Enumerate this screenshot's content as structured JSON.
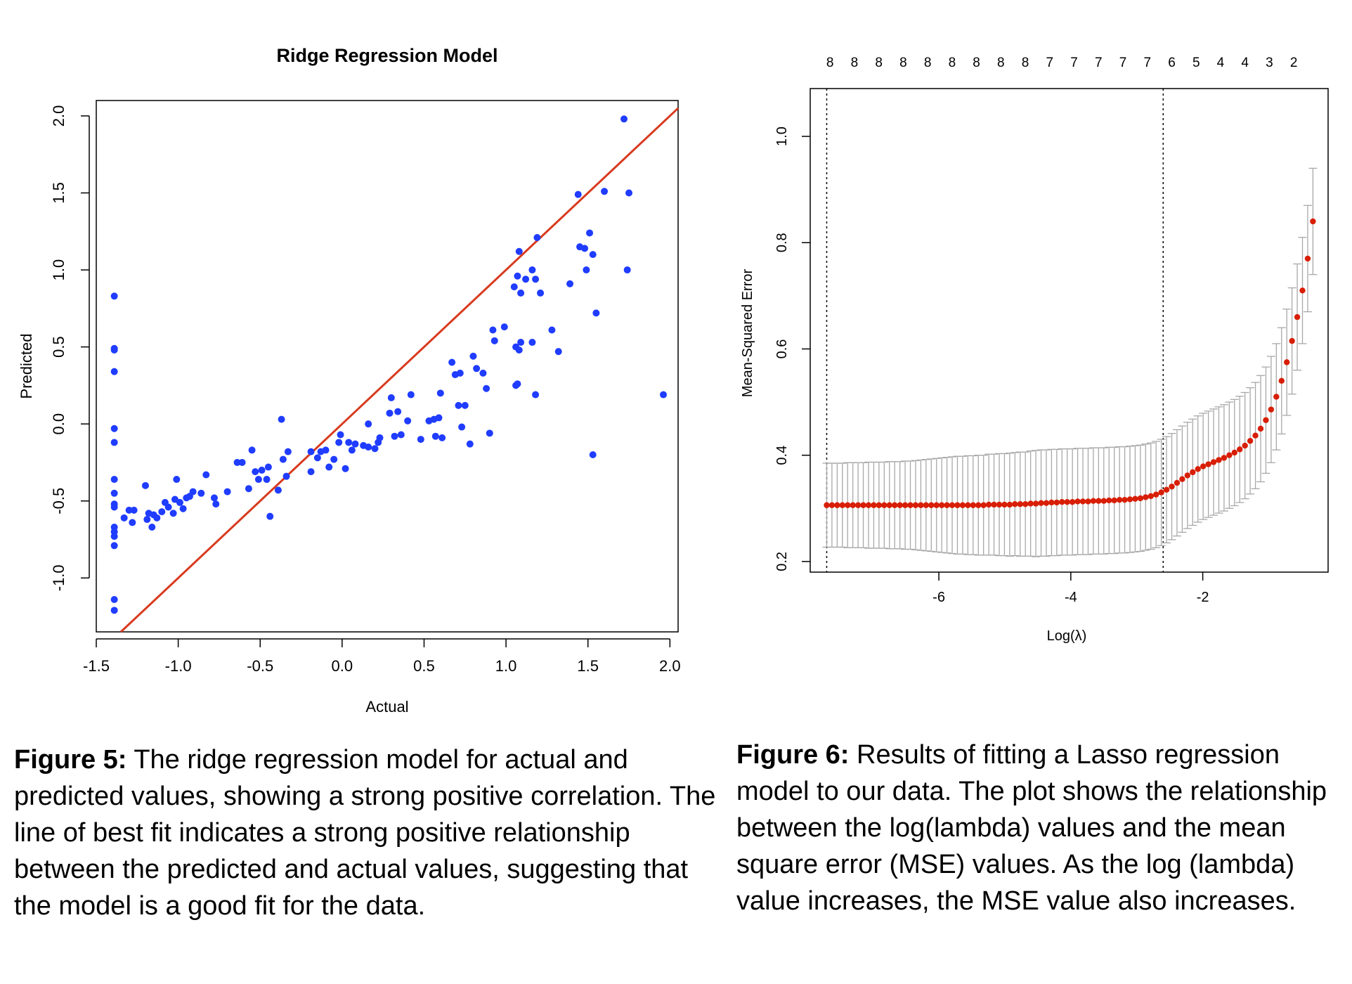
{
  "figure5": {
    "caption_label": "Figure 5:",
    "caption_text": " The ridge regression model for actual and predicted values, showing a strong positive correlation. The line of best fit indicates a strong positive relationship between the predicted and actual values, suggesting that the model is a good fit for the data."
  },
  "figure6": {
    "caption_label": "Figure 6:",
    "caption_text": " Results of fitting a Lasso regression model to our data. The plot shows the relationship between the log(lambda) values and the mean square error (MSE) values. As the log (lambda) value increases, the MSE value also increases."
  },
  "chart_data": [
    {
      "type": "scatter",
      "title": "Ridge Regression Model",
      "xlabel": "Actual",
      "ylabel": "Predicted",
      "xlim": [
        -1.5,
        2.05
      ],
      "ylim": [
        -1.35,
        2.1
      ],
      "xticks": [
        "-1.5",
        "-1.0",
        "-0.5",
        "0.0",
        "0.5",
        "1.0",
        "1.5",
        "2.0"
      ],
      "yticks": [
        "-1.0",
        "-0.5",
        "0.0",
        "0.5",
        "1.0",
        "1.5",
        "2.0"
      ],
      "point_color": "#1f3cff",
      "line_color": "#d83a1e",
      "reference_line": {
        "slope": 1,
        "intercept": 0
      },
      "points": [
        [
          -1.39,
          0.83
        ],
        [
          -1.39,
          0.49
        ],
        [
          -1.39,
          0.48
        ],
        [
          -1.39,
          0.34
        ],
        [
          -1.39,
          -0.03
        ],
        [
          -1.39,
          -0.12
        ],
        [
          -1.39,
          -0.36
        ],
        [
          -1.39,
          -0.45
        ],
        [
          -1.39,
          -0.52
        ],
        [
          -1.39,
          -0.54
        ],
        [
          -1.39,
          -0.67
        ],
        [
          -1.39,
          -0.7
        ],
        [
          -1.39,
          -0.73
        ],
        [
          -1.39,
          -0.79
        ],
        [
          -1.39,
          -1.14
        ],
        [
          -1.39,
          -1.21
        ],
        [
          -1.33,
          -0.61
        ],
        [
          -1.3,
          -0.56
        ],
        [
          -1.28,
          -0.64
        ],
        [
          -1.27,
          -0.56
        ],
        [
          -1.2,
          -0.4
        ],
        [
          -1.19,
          -0.62
        ],
        [
          -1.18,
          -0.58
        ],
        [
          -1.16,
          -0.67
        ],
        [
          -1.15,
          -0.59
        ],
        [
          -1.13,
          -0.61
        ],
        [
          -1.1,
          -0.57
        ],
        [
          -1.08,
          -0.51
        ],
        [
          -1.06,
          -0.54
        ],
        [
          -1.03,
          -0.58
        ],
        [
          -1.02,
          -0.49
        ],
        [
          -1.01,
          -0.36
        ],
        [
          -0.99,
          -0.51
        ],
        [
          -0.97,
          -0.55
        ],
        [
          -0.95,
          -0.48
        ],
        [
          -0.93,
          -0.47
        ],
        [
          -0.91,
          -0.44
        ],
        [
          -0.86,
          -0.45
        ],
        [
          -0.83,
          -0.33
        ],
        [
          -0.78,
          -0.48
        ],
        [
          -0.77,
          -0.52
        ],
        [
          -0.7,
          -0.44
        ],
        [
          -0.64,
          -0.25
        ],
        [
          -0.61,
          -0.25
        ],
        [
          -0.57,
          -0.42
        ],
        [
          -0.55,
          -0.17
        ],
        [
          -0.53,
          -0.31
        ],
        [
          -0.51,
          -0.36
        ],
        [
          -0.49,
          -0.3
        ],
        [
          -0.46,
          -0.36
        ],
        [
          -0.45,
          -0.28
        ],
        [
          -0.44,
          -0.6
        ],
        [
          -0.39,
          -0.43
        ],
        [
          -0.37,
          0.03
        ],
        [
          -0.36,
          -0.23
        ],
        [
          -0.34,
          -0.34
        ],
        [
          -0.33,
          -0.18
        ],
        [
          -0.19,
          -0.31
        ],
        [
          -0.19,
          -0.18
        ],
        [
          -0.15,
          -0.22
        ],
        [
          -0.13,
          -0.18
        ],
        [
          -0.1,
          -0.17
        ],
        [
          -0.08,
          -0.28
        ],
        [
          -0.05,
          -0.23
        ],
        [
          -0.02,
          -0.12
        ],
        [
          -0.01,
          -0.07
        ],
        [
          0.02,
          -0.29
        ],
        [
          0.04,
          -0.12
        ],
        [
          0.06,
          -0.17
        ],
        [
          0.08,
          -0.13
        ],
        [
          0.13,
          -0.14
        ],
        [
          0.16,
          -0.15
        ],
        [
          0.16,
          0.0
        ],
        [
          0.2,
          -0.16
        ],
        [
          0.22,
          -0.12
        ],
        [
          0.23,
          -0.09
        ],
        [
          0.29,
          0.07
        ],
        [
          0.3,
          0.17
        ],
        [
          0.32,
          -0.08
        ],
        [
          0.34,
          0.08
        ],
        [
          0.36,
          -0.07
        ],
        [
          0.4,
          0.02
        ],
        [
          0.42,
          0.19
        ],
        [
          0.48,
          -0.1
        ],
        [
          0.53,
          0.02
        ],
        [
          0.56,
          0.03
        ],
        [
          0.57,
          -0.08
        ],
        [
          0.59,
          0.04
        ],
        [
          0.6,
          0.2
        ],
        [
          0.61,
          -0.09
        ],
        [
          0.67,
          0.4
        ],
        [
          0.69,
          0.32
        ],
        [
          0.71,
          0.12
        ],
        [
          0.72,
          0.33
        ],
        [
          0.73,
          -0.02
        ],
        [
          0.75,
          0.12
        ],
        [
          0.78,
          -0.13
        ],
        [
          0.8,
          0.44
        ],
        [
          0.82,
          0.36
        ],
        [
          0.86,
          0.33
        ],
        [
          0.88,
          0.23
        ],
        [
          0.9,
          -0.06
        ],
        [
          0.92,
          0.61
        ],
        [
          0.93,
          0.54
        ],
        [
          0.99,
          0.63
        ],
        [
          1.05,
          0.89
        ],
        [
          1.06,
          0.25
        ],
        [
          1.06,
          0.5
        ],
        [
          1.07,
          0.26
        ],
        [
          1.07,
          0.96
        ],
        [
          1.08,
          0.48
        ],
        [
          1.08,
          1.12
        ],
        [
          1.09,
          0.53
        ],
        [
          1.09,
          0.85
        ],
        [
          1.12,
          0.94
        ],
        [
          1.16,
          0.53
        ],
        [
          1.16,
          1.0
        ],
        [
          1.18,
          0.19
        ],
        [
          1.18,
          0.94
        ],
        [
          1.19,
          1.21
        ],
        [
          1.21,
          0.85
        ],
        [
          1.28,
          0.61
        ],
        [
          1.32,
          0.47
        ],
        [
          1.39,
          0.91
        ],
        [
          1.44,
          1.49
        ],
        [
          1.45,
          1.15
        ],
        [
          1.48,
          1.14
        ],
        [
          1.49,
          1.0
        ],
        [
          1.51,
          1.24
        ],
        [
          1.53,
          -0.2
        ],
        [
          1.53,
          1.1
        ],
        [
          1.55,
          0.72
        ],
        [
          1.6,
          1.51
        ],
        [
          1.72,
          1.98
        ],
        [
          1.74,
          1.0
        ],
        [
          1.75,
          1.5
        ],
        [
          1.96,
          0.19
        ]
      ]
    },
    {
      "type": "scatter",
      "title": "",
      "xlabel": "Log(λ)",
      "ylabel": "Mean-Squared Error",
      "xlim": [
        -7.95,
        -0.1
      ],
      "ylim": [
        0.18,
        1.09
      ],
      "xticks": [
        "-6",
        "-4",
        "-2"
      ],
      "yticks": [
        "0.2",
        "0.4",
        "0.6",
        "0.8",
        "1.0"
      ],
      "point_color": "#d81e05",
      "errorbar_color": "#a8a8a8",
      "vlines": [
        -7.7,
        -2.6
      ],
      "top_axis_labels": [
        "8",
        "8",
        "8",
        "8",
        "8",
        "8",
        "8",
        "8",
        "8",
        "7",
        "7",
        "7",
        "7",
        "7",
        "6",
        "5",
        "4",
        "4",
        "3",
        "2"
      ],
      "top_axis_positions": [
        -7.65,
        -7.28,
        -6.91,
        -6.54,
        -6.17,
        -5.8,
        -5.43,
        -5.06,
        -4.69,
        -4.32,
        -3.95,
        -3.58,
        -3.21,
        -2.84,
        -2.47,
        -2.1,
        -1.73,
        -1.36,
        -0.99,
        -0.62
      ],
      "errorbar": {
        "x_start": -7.7,
        "x_end": -0.33,
        "count": 94,
        "se": [
          0.079,
          0.079,
          0.079,
          0.079,
          0.08,
          0.08,
          0.08,
          0.08,
          0.081,
          0.081,
          0.081,
          0.081,
          0.082,
          0.082,
          0.082,
          0.083,
          0.083,
          0.084,
          0.085,
          0.086,
          0.087,
          0.088,
          0.089,
          0.09,
          0.091,
          0.092,
          0.092,
          0.093,
          0.093,
          0.094,
          0.094,
          0.095,
          0.095,
          0.096,
          0.096,
          0.097,
          0.097,
          0.098,
          0.098,
          0.099,
          0.1,
          0.1,
          0.1,
          0.1,
          0.1,
          0.1,
          0.1,
          0.1,
          0.1,
          0.1,
          0.1,
          0.1,
          0.1,
          0.1,
          0.1,
          0.1,
          0.1,
          0.1,
          0.1,
          0.1,
          0.1,
          0.1,
          0.1,
          0.1,
          0.1,
          0.1,
          0.1,
          0.1,
          0.1,
          0.1,
          0.1,
          0.1,
          0.1,
          0.1,
          0.1,
          0.1,
          0.1,
          0.1,
          0.1,
          0.1,
          0.1,
          0.1,
          0.1,
          0.1,
          0.1,
          0.1,
          0.1,
          0.1,
          0.1,
          0.1,
          0.1,
          0.1,
          0.1,
          0.1
        ]
      },
      "mse": [
        0.306,
        0.306,
        0.306,
        0.306,
        0.306,
        0.306,
        0.306,
        0.306,
        0.306,
        0.306,
        0.306,
        0.306,
        0.306,
        0.306,
        0.306,
        0.306,
        0.306,
        0.306,
        0.306,
        0.306,
        0.306,
        0.306,
        0.306,
        0.306,
        0.306,
        0.306,
        0.306,
        0.306,
        0.306,
        0.306,
        0.306,
        0.307,
        0.307,
        0.307,
        0.307,
        0.307,
        0.308,
        0.308,
        0.308,
        0.309,
        0.309,
        0.31,
        0.31,
        0.311,
        0.311,
        0.312,
        0.312,
        0.312,
        0.313,
        0.313,
        0.313,
        0.314,
        0.314,
        0.314,
        0.315,
        0.315,
        0.316,
        0.316,
        0.317,
        0.318,
        0.319,
        0.321,
        0.323,
        0.326,
        0.33,
        0.335,
        0.341,
        0.348,
        0.355,
        0.362,
        0.368,
        0.374,
        0.379,
        0.383,
        0.387,
        0.391,
        0.395,
        0.4,
        0.405,
        0.411,
        0.418,
        0.427,
        0.437,
        0.45,
        0.466,
        0.486,
        0.51,
        0.54,
        0.575,
        0.615,
        0.66,
        0.71,
        0.77,
        0.84
      ]
    }
  ]
}
